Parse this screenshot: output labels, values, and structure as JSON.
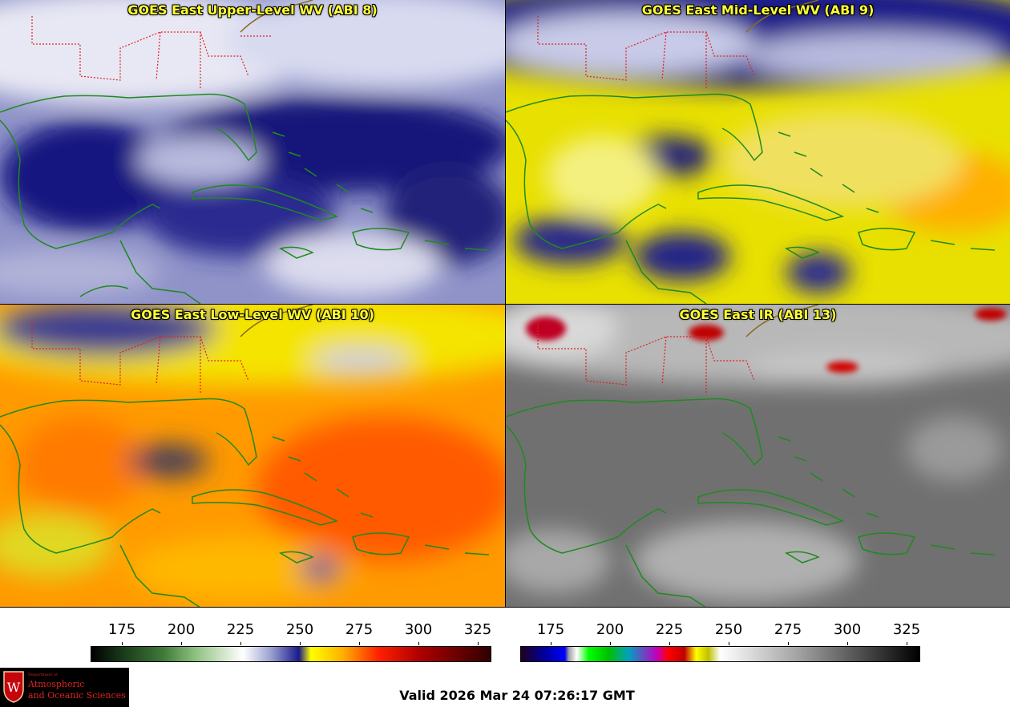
{
  "panels": [
    {
      "title": "GOES East Upper-Level WV (ABI 8)",
      "palette": "wv-upper"
    },
    {
      "title": "GOES East Mid-Level WV (ABI 9)",
      "palette": "wv-mid"
    },
    {
      "title": "GOES East Low-Level WV (ABI 10)",
      "palette": "wv-low"
    },
    {
      "title": "GOES East IR (ABI 13)",
      "palette": "ir"
    }
  ],
  "colorbar_left": {
    "ticks": [
      "175",
      "200",
      "225",
      "250",
      "275",
      "300",
      "325"
    ]
  },
  "colorbar_right": {
    "ticks": [
      "175",
      "200",
      "225",
      "250",
      "275",
      "300",
      "325"
    ]
  },
  "logo": {
    "dept": "Department of",
    "line1": "Atmospheric",
    "line2": "and Oceanic Sciences",
    "initial": "W"
  },
  "valid_time": "Valid 2026 Mar 24 07:26:17 GMT",
  "colors": {
    "title": "#ffff33",
    "coastline": "#1f8a1f",
    "state_borders": "#ff2020"
  }
}
